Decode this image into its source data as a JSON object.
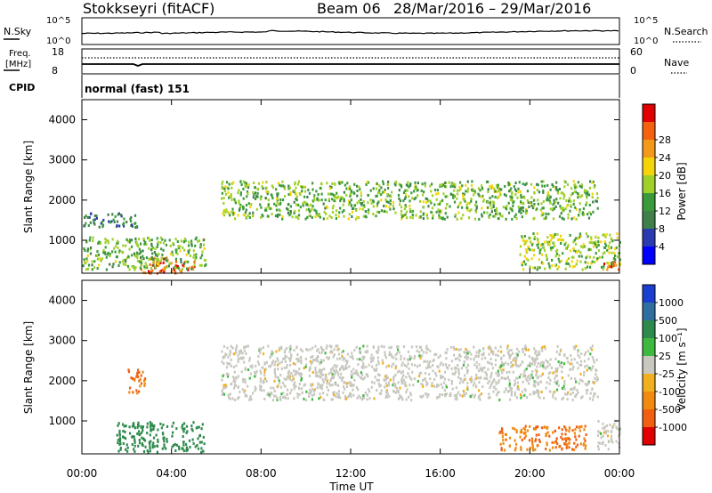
{
  "header": {
    "station": "Stokkseyri (fitACF)",
    "beam": "Beam 06",
    "dates": "28/Mar/2016 – 29/Mar/2016"
  },
  "noise_panel": {
    "left_label": "N.Sky",
    "right_label": "N.Search",
    "tick_top": "10^5",
    "tick_bottom": "10^0"
  },
  "freq_panel": {
    "left_label_1": "Freq.",
    "left_label_2": "[MHz]",
    "left_tick_top": "18",
    "left_tick_bottom": "8",
    "right_label": "Nave",
    "right_tick_top": "60",
    "right_tick_bottom": "0"
  },
  "cpid": {
    "label": "CPID",
    "value": "normal (fast) 151"
  },
  "power_panel": {
    "ylabel": "Slant Range [km]",
    "colorbar_label": "Power [dB]",
    "colorbar_ticks": [
      "4",
      "8",
      "12",
      "16",
      "20",
      "24",
      "28"
    ],
    "colorbar_colors": [
      "#0000ff",
      "#2a3bb0",
      "#3f7f4a",
      "#3a9a3a",
      "#9fd12a",
      "#f5d40a",
      "#f39a1a",
      "#f4620f",
      "#e00000"
    ]
  },
  "velocity_panel": {
    "ylabel": "Slant Range [km]",
    "colorbar_label": "Velocity [m s⁻¹]",
    "colorbar_ticks": [
      "1000",
      "500",
      "100",
      "25",
      "-25",
      "-100",
      "-500",
      "-1000"
    ],
    "colorbar_colors": [
      "#1a3fd0",
      "#2f6fa0",
      "#2e8a4c",
      "#3fb83f",
      "#c8c8c0",
      "#f0b020",
      "#f08a10",
      "#f06010",
      "#e00000"
    ]
  },
  "xaxis": {
    "label": "Time UT",
    "ticks": [
      "00:00",
      "04:00",
      "08:00",
      "12:00",
      "16:00",
      "20:00",
      "00:00"
    ]
  },
  "chart_data": {
    "type": "heatmap",
    "x_range_hours": [
      0,
      24
    ],
    "y_range_km": [
      180,
      4500
    ],
    "yticks": [
      1000,
      2000,
      3000,
      4000
    ],
    "power_regions": [
      {
        "t0": 6.2,
        "t1": 23.0,
        "r0": 1550,
        "r1": 2500,
        "level": 14
      },
      {
        "t0": 0.0,
        "t1": 2.6,
        "r0": 1350,
        "r1": 1700,
        "level": 8
      },
      {
        "t0": 2.6,
        "t1": 5.0,
        "r0": 200,
        "r1": 600,
        "level": 28
      },
      {
        "t0": 0.0,
        "t1": 5.5,
        "r0": 300,
        "r1": 1100,
        "level": 14
      },
      {
        "t0": 19.5,
        "t1": 24.0,
        "r0": 300,
        "r1": 1200,
        "level": 16
      },
      {
        "t0": 23.2,
        "t1": 24.0,
        "r0": 300,
        "r1": 500,
        "level": 28
      }
    ],
    "velocity_regions": [
      {
        "t0": 6.2,
        "t1": 23.0,
        "r0": 1550,
        "r1": 2900,
        "level": 0
      },
      {
        "t0": 1.5,
        "t1": 5.5,
        "r0": 250,
        "r1": 1000,
        "level": 300
      },
      {
        "t0": 2.0,
        "t1": 2.8,
        "r0": 1700,
        "r1": 2300,
        "level": -500
      },
      {
        "t0": 18.5,
        "t1": 22.5,
        "r0": 300,
        "r1": 900,
        "level": -500
      },
      {
        "t0": 23.0,
        "t1": 24.0,
        "r0": 300,
        "r1": 1100,
        "level": 0
      }
    ]
  }
}
